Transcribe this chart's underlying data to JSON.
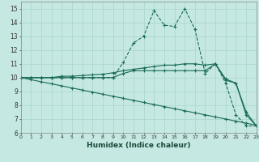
{
  "xlabel": "Humidex (Indice chaleur)",
  "xlim": [
    0,
    23
  ],
  "ylim": [
    6,
    15.5
  ],
  "yticks": [
    6,
    7,
    8,
    9,
    10,
    11,
    12,
    13,
    14,
    15
  ],
  "xticks": [
    0,
    1,
    2,
    3,
    4,
    5,
    6,
    7,
    8,
    9,
    10,
    11,
    12,
    13,
    14,
    15,
    16,
    17,
    18,
    19,
    20,
    21,
    22,
    23
  ],
  "bg_color": "#c5e8e2",
  "line_color": "#1a6b5a",
  "grid_color": "#a8d4cc",
  "lines": [
    {
      "x": [
        0,
        1,
        2,
        3,
        4,
        5,
        6,
        7,
        8,
        9,
        10,
        11,
        12,
        13,
        14,
        15,
        16,
        17,
        18,
        19,
        20,
        21,
        22,
        23
      ],
      "y": [
        10,
        10,
        10,
        10,
        10,
        10,
        10,
        10,
        10,
        10,
        11.1,
        12.5,
        13.0,
        14.85,
        13.8,
        13.7,
        15.0,
        13.5,
        10.3,
        11.0,
        9.6,
        7.3,
        6.5,
        6.5
      ],
      "marker": "+",
      "markersize": 3.0,
      "linestyle": "--",
      "lw": 0.8
    },
    {
      "x": [
        0,
        1,
        2,
        3,
        4,
        5,
        6,
        7,
        8,
        9,
        10,
        11,
        12,
        13,
        14,
        15,
        16,
        17,
        18,
        19,
        20,
        21,
        22,
        23
      ],
      "y": [
        10,
        10,
        10,
        10,
        10,
        10,
        10,
        10,
        10,
        10,
        10.3,
        10.5,
        10.5,
        10.5,
        10.5,
        10.5,
        10.5,
        10.5,
        10.5,
        11.0,
        9.9,
        9.6,
        7.3,
        6.5
      ],
      "marker": "+",
      "markersize": 2.5,
      "linestyle": "-",
      "lw": 0.8
    },
    {
      "x": [
        0,
        1,
        2,
        3,
        4,
        5,
        6,
        7,
        8,
        9,
        10,
        11,
        12,
        13,
        14,
        15,
        16,
        17,
        18,
        19,
        20,
        21,
        22,
        23
      ],
      "y": [
        10,
        10,
        10,
        10,
        10.1,
        10.1,
        10.15,
        10.2,
        10.25,
        10.35,
        10.5,
        10.6,
        10.7,
        10.8,
        10.9,
        10.9,
        11.0,
        11.0,
        10.9,
        11.0,
        9.8,
        9.6,
        7.5,
        6.5
      ],
      "marker": "+",
      "markersize": 2.5,
      "linestyle": "-",
      "lw": 0.8
    },
    {
      "x": [
        0,
        1,
        2,
        3,
        4,
        5,
        6,
        7,
        8,
        9,
        10,
        11,
        12,
        13,
        14,
        15,
        16,
        17,
        18,
        19,
        20,
        21,
        22,
        23
      ],
      "y": [
        10,
        9.85,
        9.7,
        9.55,
        9.4,
        9.25,
        9.1,
        8.95,
        8.8,
        8.65,
        8.5,
        8.35,
        8.2,
        8.05,
        7.9,
        7.75,
        7.6,
        7.45,
        7.3,
        7.15,
        7.0,
        6.85,
        6.7,
        6.55
      ],
      "marker": "+",
      "markersize": 2.5,
      "linestyle": "-",
      "lw": 0.8
    }
  ]
}
